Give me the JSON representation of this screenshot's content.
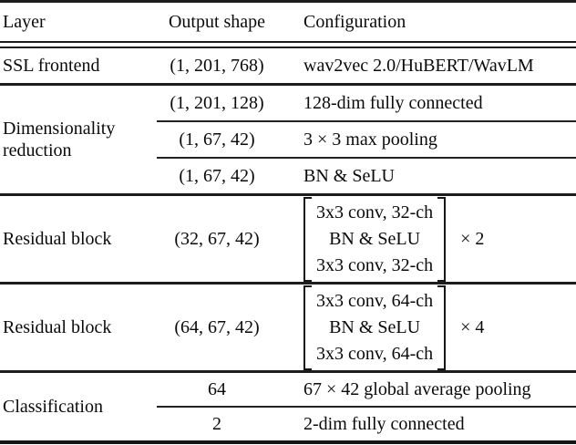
{
  "colors": {
    "text": "#0a0a0a",
    "rule": "#1c1c1c",
    "background": "#ffffff"
  },
  "table": {
    "columns": [
      "Layer",
      "Output shape",
      "Configuration"
    ],
    "sections": [
      {
        "label": "SSL frontend",
        "rows": [
          {
            "shape": "(1, 201, 768)",
            "config": "wav2vec 2.0/HuBERT/WavLM"
          }
        ]
      },
      {
        "label": "Dimensionality reduction",
        "rows": [
          {
            "shape": "(1, 201, 128)",
            "config": "128-dim fully connected"
          },
          {
            "shape": "(1, 67, 42)",
            "config": "3 × 3 max pooling"
          },
          {
            "shape": "(1, 67, 42)",
            "config": "BN & SeLU"
          }
        ]
      },
      {
        "label": "Residual block",
        "rows": [
          {
            "shape": "(32, 67, 42)",
            "matrix": [
              "3x3 conv, 32-ch",
              "BN & SeLU",
              "3x3 conv, 32-ch"
            ],
            "multiplier": "× 2"
          }
        ]
      },
      {
        "label": "Residual block",
        "rows": [
          {
            "shape": "(64, 67, 42)",
            "matrix": [
              "3x3 conv, 64-ch",
              "BN & SeLU",
              "3x3 conv, 64-ch"
            ],
            "multiplier": "× 4"
          }
        ]
      },
      {
        "label": "Classification",
        "rows": [
          {
            "shape": "64",
            "config": "67 × 42 global average pooling"
          },
          {
            "shape": "2",
            "config": "2-dim fully connected"
          }
        ]
      }
    ]
  }
}
